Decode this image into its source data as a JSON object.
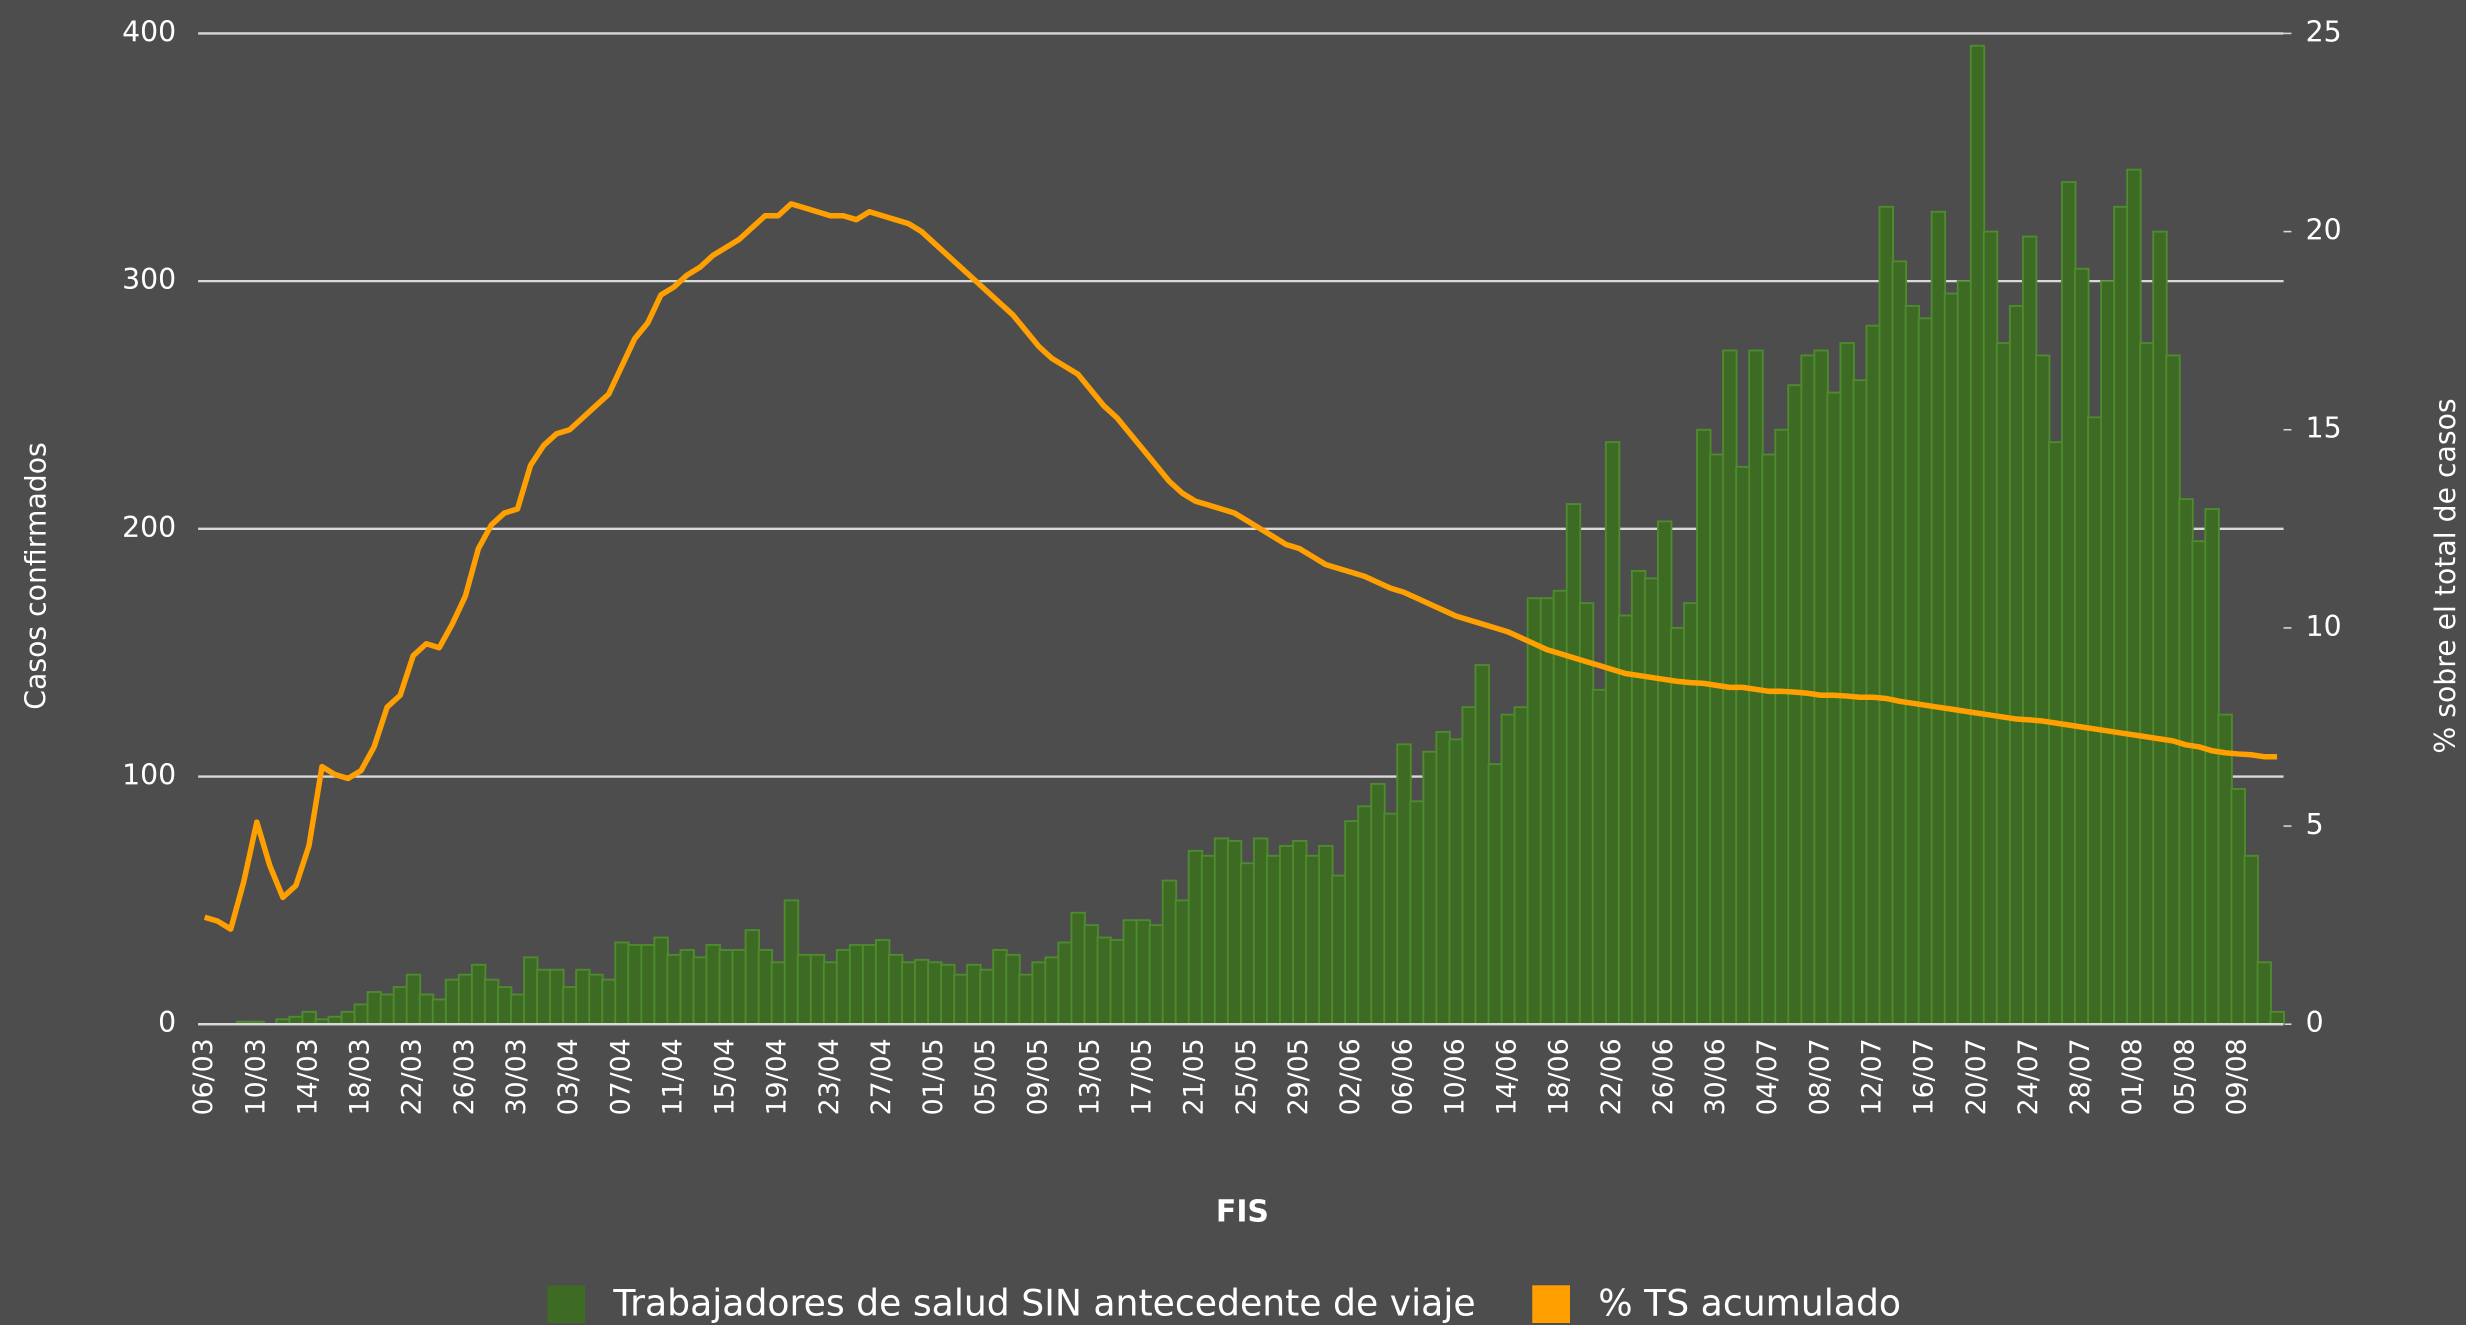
{
  "chart_data": {
    "type": "bar-line",
    "x_label": "FIS",
    "y_label": "Casos confirmados",
    "y2_label": "% sobre el total de casos",
    "categories": [
      "06/03",
      null,
      null,
      null,
      "10/03",
      null,
      null,
      null,
      "14/03",
      null,
      null,
      null,
      "18/03",
      null,
      null,
      null,
      "22/03",
      null,
      null,
      null,
      "26/03",
      null,
      null,
      null,
      "30/03",
      null,
      null,
      null,
      "03/04",
      null,
      null,
      null,
      "07/04",
      null,
      null,
      null,
      "11/04",
      null,
      null,
      null,
      "15/04",
      null,
      null,
      null,
      "19/04",
      null,
      null,
      null,
      "23/04",
      null,
      null,
      null,
      "27/04",
      null,
      null,
      null,
      "01/05",
      null,
      null,
      null,
      "05/05",
      null,
      null,
      null,
      "09/05",
      null,
      null,
      null,
      "13/05",
      null,
      null,
      null,
      "17/05",
      null,
      null,
      null,
      "21/05",
      null,
      null,
      null,
      "25/05",
      null,
      null,
      null,
      "29/05",
      null,
      null,
      null,
      "02/06",
      null,
      null,
      null,
      "06/06",
      null,
      null,
      null,
      "10/06",
      null,
      null,
      null,
      "14/06",
      null,
      null,
      null,
      "18/06",
      null,
      null,
      null,
      "22/06",
      null,
      null,
      null,
      "26/06",
      null,
      null,
      null,
      "30/06",
      null,
      null,
      null,
      "04/07",
      null,
      null,
      null,
      "08/07",
      null,
      null,
      null,
      "12/07",
      null,
      null,
      null,
      "16/07",
      null,
      null,
      null,
      "20/07",
      null,
      null,
      null,
      "24/07",
      null,
      null,
      null,
      "28/07",
      null,
      null,
      null,
      "01/08",
      null,
      null,
      null,
      "05/08",
      null,
      null,
      null,
      "09/08",
      null,
      null,
      null
    ],
    "series": [
      {
        "name": "Trabajadores de salud SIN antecedente de viaje",
        "type": "bar",
        "color": "#3d6b24",
        "edge": "#4f8a2e",
        "values": [
          0,
          0,
          0,
          1,
          1,
          0,
          2,
          3,
          5,
          2,
          3,
          5,
          8,
          13,
          12,
          15,
          20,
          12,
          10,
          18,
          20,
          24,
          18,
          15,
          12,
          27,
          22,
          22,
          15,
          22,
          20,
          18,
          33,
          32,
          32,
          35,
          28,
          30,
          27,
          32,
          30,
          30,
          38,
          30,
          25,
          50,
          28,
          28,
          25,
          30,
          32,
          32,
          34,
          28,
          25,
          26,
          25,
          24,
          20,
          24,
          22,
          30,
          28,
          20,
          25,
          27,
          33,
          45,
          40,
          35,
          34,
          42,
          42,
          40,
          58,
          50,
          70,
          68,
          75,
          74,
          65,
          75,
          68,
          72,
          74,
          68,
          72,
          60,
          82,
          88,
          97,
          85,
          113,
          90,
          110,
          118,
          115,
          128,
          145,
          105,
          125,
          128,
          172,
          172,
          175,
          210,
          170,
          135,
          235,
          165,
          183,
          180,
          203,
          160,
          170,
          240,
          230,
          272,
          225,
          272,
          230,
          240,
          258,
          270,
          272,
          255,
          275,
          260,
          282,
          330,
          308,
          290,
          285,
          328,
          295,
          300,
          395,
          320,
          275,
          290,
          318,
          270,
          235,
          340,
          305,
          245,
          300,
          330,
          345,
          275,
          320,
          270,
          212,
          195,
          208,
          125,
          95,
          68,
          25,
          5
        ]
      },
      {
        "name": "% TS acumulado",
        "type": "line",
        "axis": "y2",
        "color": "#ffa000",
        "values": [
          2.7,
          2.6,
          2.4,
          3.6,
          5.1,
          4.0,
          3.2,
          3.5,
          4.5,
          6.5,
          6.3,
          6.2,
          6.4,
          7.0,
          8.0,
          8.3,
          9.3,
          9.6,
          9.5,
          10.1,
          10.8,
          12.0,
          12.6,
          12.9,
          13.0,
          14.1,
          14.6,
          14.9,
          15.0,
          15.3,
          15.6,
          15.9,
          16.6,
          17.3,
          17.7,
          18.4,
          18.6,
          18.9,
          19.1,
          19.4,
          19.6,
          19.8,
          20.1,
          20.4,
          20.4,
          20.7,
          20.6,
          20.5,
          20.4,
          20.4,
          20.3,
          20.5,
          20.4,
          20.3,
          20.2,
          20.0,
          19.7,
          19.4,
          19.1,
          18.8,
          18.5,
          18.2,
          17.9,
          17.5,
          17.1,
          16.8,
          16.6,
          16.4,
          16.0,
          15.6,
          15.3,
          14.9,
          14.5,
          14.1,
          13.7,
          13.4,
          13.2,
          13.1,
          13.0,
          12.9,
          12.7,
          12.5,
          12.3,
          12.1,
          12.0,
          11.8,
          11.6,
          11.5,
          11.4,
          11.3,
          11.15,
          11.0,
          10.9,
          10.75,
          10.6,
          10.45,
          10.3,
          10.2,
          10.1,
          10.0,
          9.9,
          9.75,
          9.6,
          9.45,
          9.35,
          9.25,
          9.15,
          9.05,
          8.95,
          8.85,
          8.8,
          8.75,
          8.7,
          8.65,
          8.62,
          8.6,
          8.55,
          8.5,
          8.5,
          8.45,
          8.4,
          8.4,
          8.38,
          8.35,
          8.3,
          8.3,
          8.28,
          8.25,
          8.25,
          8.22,
          8.15,
          8.1,
          8.05,
          8.0,
          7.95,
          7.9,
          7.85,
          7.8,
          7.75,
          7.7,
          7.68,
          7.65,
          7.6,
          7.55,
          7.5,
          7.45,
          7.4,
          7.35,
          7.3,
          7.25,
          7.2,
          7.15,
          7.05,
          7.0,
          6.9,
          6.85,
          6.82,
          6.8,
          6.75,
          6.75
        ]
      }
    ],
    "ylim": [
      0,
      400
    ],
    "yticks": [
      0,
      100,
      200,
      300,
      400
    ],
    "y2lim": [
      0,
      25
    ],
    "y2ticks": [
      0,
      5,
      10,
      15,
      20,
      25
    ],
    "grid": true,
    "legend": "bottom"
  }
}
